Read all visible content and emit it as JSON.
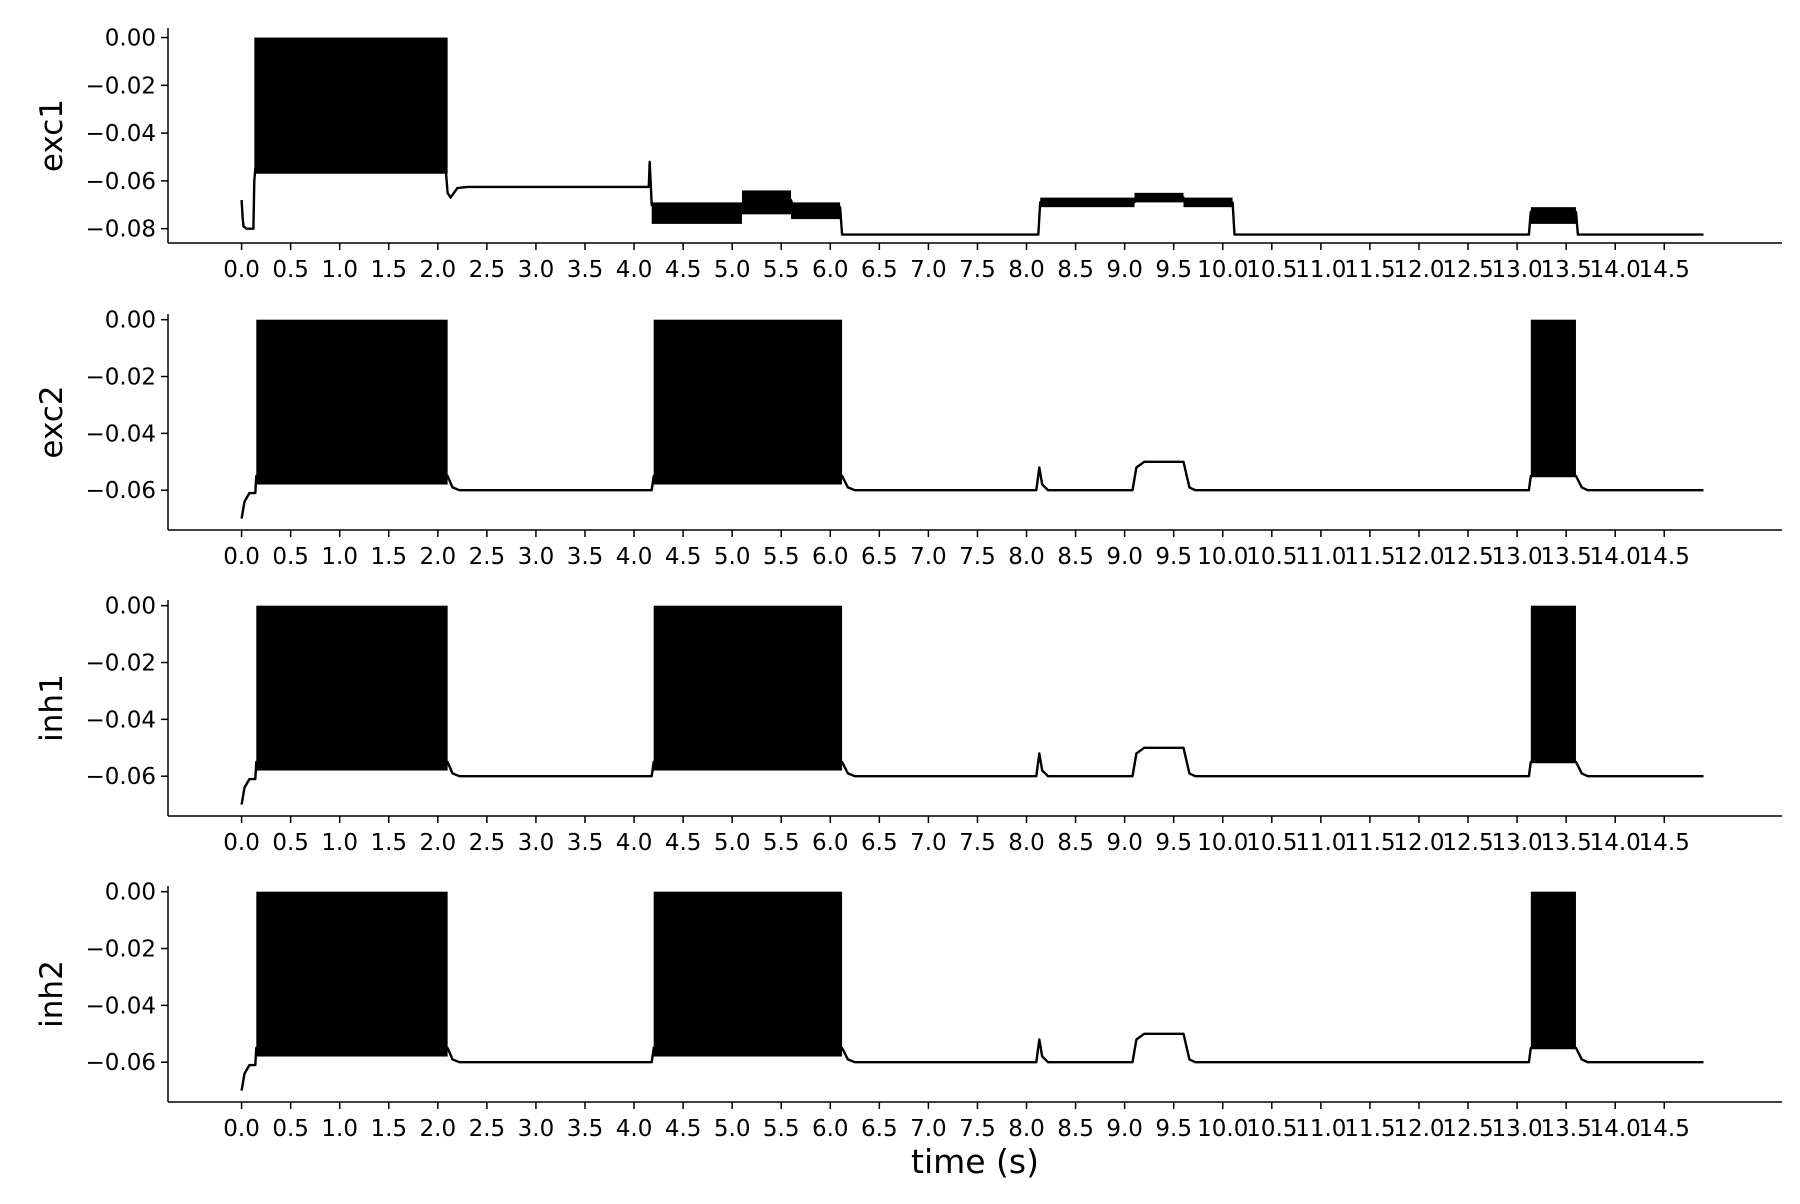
{
  "chart_data": {
    "type": "line",
    "xlabel": "time (s)",
    "xlim": [
      -0.75,
      15.7
    ],
    "xticks": [
      0.0,
      0.5,
      1.0,
      1.5,
      2.0,
      2.5,
      3.0,
      3.5,
      4.0,
      4.5,
      5.0,
      5.5,
      6.0,
      6.5,
      7.0,
      7.5,
      8.0,
      8.5,
      9.0,
      9.5,
      10.0,
      10.5,
      11.0,
      11.5,
      12.0,
      12.5,
      13.0,
      13.5,
      14.0,
      14.5
    ],
    "xtick_labels": [
      "0.0",
      "0.5",
      "1.0",
      "1.5",
      "2.0",
      "2.5",
      "3.0",
      "3.5",
      "4.0",
      "4.5",
      "5.0",
      "5.5",
      "6.0",
      "6.5",
      "7.0",
      "7.5",
      "8.0",
      "8.5",
      "9.0",
      "9.5",
      "10.0",
      "10.5",
      "11.0",
      "11.5",
      "12.0",
      "12.5",
      "13.0",
      "13.5",
      "14.0",
      "14.5"
    ],
    "line_color": "#000000",
    "grid": false,
    "panels": [
      {
        "ylabel": "exc1",
        "ylim": [
          -0.086,
          0.004
        ],
        "yticks": [
          0.0,
          -0.02,
          -0.04,
          -0.06,
          -0.08
        ],
        "ytick_labels": [
          "0.00",
          "−0.02",
          "−0.04",
          "−0.06",
          "−0.08"
        ],
        "trace": [
          [
            0.0,
            -0.068
          ],
          [
            0.01,
            -0.075
          ],
          [
            0.02,
            -0.079
          ],
          [
            0.05,
            -0.08
          ],
          [
            0.12,
            -0.08
          ],
          [
            0.13,
            -0.06
          ],
          [
            0.14,
            -0.055
          ],
          [
            2.08,
            -0.055
          ],
          [
            2.1,
            -0.065
          ],
          [
            2.13,
            -0.067
          ],
          [
            2.2,
            -0.063
          ],
          [
            2.3,
            -0.0625
          ],
          [
            4.15,
            -0.0625
          ],
          [
            4.16,
            -0.052
          ],
          [
            4.18,
            -0.07
          ],
          [
            4.2,
            -0.071
          ],
          [
            5.1,
            -0.071
          ],
          [
            5.12,
            -0.068
          ],
          [
            5.6,
            -0.068
          ],
          [
            5.62,
            -0.071
          ],
          [
            6.1,
            -0.071
          ],
          [
            6.12,
            -0.0825
          ],
          [
            8.12,
            -0.0825
          ],
          [
            8.14,
            -0.069
          ],
          [
            9.1,
            -0.069
          ],
          [
            9.12,
            -0.067
          ],
          [
            9.6,
            -0.067
          ],
          [
            9.62,
            -0.069
          ],
          [
            10.1,
            -0.069
          ],
          [
            10.12,
            -0.0825
          ],
          [
            13.12,
            -0.0825
          ],
          [
            13.14,
            -0.073
          ],
          [
            13.6,
            -0.073
          ],
          [
            13.62,
            -0.0825
          ],
          [
            14.9,
            -0.0825
          ]
        ],
        "bursts": [
          {
            "x0": 0.13,
            "x1": 2.1,
            "y0": -0.057,
            "y1": 0.0
          },
          {
            "x0": 4.18,
            "x1": 5.1,
            "y0": -0.078,
            "y1": -0.069
          },
          {
            "x0": 5.1,
            "x1": 5.6,
            "y0": -0.074,
            "y1": -0.064
          },
          {
            "x0": 5.6,
            "x1": 6.1,
            "y0": -0.076,
            "y1": -0.069
          },
          {
            "x0": 8.14,
            "x1": 9.1,
            "y0": -0.071,
            "y1": -0.067
          },
          {
            "x0": 9.1,
            "x1": 9.6,
            "y0": -0.069,
            "y1": -0.065
          },
          {
            "x0": 9.6,
            "x1": 10.1,
            "y0": -0.071,
            "y1": -0.067
          },
          {
            "x0": 13.14,
            "x1": 13.6,
            "y0": -0.078,
            "y1": -0.071
          }
        ]
      },
      {
        "ylabel": "exc2",
        "ylim": [
          -0.074,
          0.002
        ],
        "yticks": [
          0.0,
          -0.02,
          -0.04,
          -0.06
        ],
        "ytick_labels": [
          "0.00",
          "−0.02",
          "−0.04",
          "−0.06"
        ],
        "trace": [
          [
            0.0,
            -0.07
          ],
          [
            0.03,
            -0.064
          ],
          [
            0.08,
            -0.061
          ],
          [
            0.14,
            -0.061
          ],
          [
            0.15,
            -0.055
          ],
          [
            2.1,
            -0.055
          ],
          [
            2.15,
            -0.059
          ],
          [
            2.22,
            -0.06
          ],
          [
            4.18,
            -0.06
          ],
          [
            4.2,
            -0.055
          ],
          [
            6.12,
            -0.055
          ],
          [
            6.18,
            -0.059
          ],
          [
            6.25,
            -0.06
          ],
          [
            8.1,
            -0.06
          ],
          [
            8.13,
            -0.052
          ],
          [
            8.16,
            -0.058
          ],
          [
            8.22,
            -0.06
          ],
          [
            9.08,
            -0.06
          ],
          [
            9.12,
            -0.052
          ],
          [
            9.2,
            -0.05
          ],
          [
            9.6,
            -0.05
          ],
          [
            9.66,
            -0.059
          ],
          [
            9.72,
            -0.06
          ],
          [
            13.12,
            -0.06
          ],
          [
            13.14,
            -0.055
          ],
          [
            13.6,
            -0.055
          ],
          [
            13.66,
            -0.059
          ],
          [
            13.72,
            -0.06
          ],
          [
            14.9,
            -0.06
          ]
        ],
        "bursts": [
          {
            "x0": 0.15,
            "x1": 2.1,
            "y0": -0.058,
            "y1": 0.0
          },
          {
            "x0": 4.2,
            "x1": 6.12,
            "y0": -0.058,
            "y1": 0.0
          },
          {
            "x0": 13.14,
            "x1": 13.6,
            "y0": -0.055,
            "y1": 0.0
          }
        ]
      },
      {
        "ylabel": "inh1",
        "ylim": [
          -0.074,
          0.002
        ],
        "yticks": [
          0.0,
          -0.02,
          -0.04,
          -0.06
        ],
        "ytick_labels": [
          "0.00",
          "−0.02",
          "−0.04",
          "−0.06"
        ],
        "trace": [
          [
            0.0,
            -0.07
          ],
          [
            0.03,
            -0.064
          ],
          [
            0.08,
            -0.061
          ],
          [
            0.14,
            -0.061
          ],
          [
            0.15,
            -0.055
          ],
          [
            2.1,
            -0.055
          ],
          [
            2.15,
            -0.059
          ],
          [
            2.22,
            -0.06
          ],
          [
            4.18,
            -0.06
          ],
          [
            4.2,
            -0.055
          ],
          [
            6.12,
            -0.055
          ],
          [
            6.18,
            -0.059
          ],
          [
            6.25,
            -0.06
          ],
          [
            8.1,
            -0.06
          ],
          [
            8.13,
            -0.052
          ],
          [
            8.16,
            -0.058
          ],
          [
            8.22,
            -0.06
          ],
          [
            9.08,
            -0.06
          ],
          [
            9.12,
            -0.052
          ],
          [
            9.2,
            -0.05
          ],
          [
            9.6,
            -0.05
          ],
          [
            9.66,
            -0.059
          ],
          [
            9.72,
            -0.06
          ],
          [
            13.12,
            -0.06
          ],
          [
            13.14,
            -0.055
          ],
          [
            13.6,
            -0.055
          ],
          [
            13.66,
            -0.059
          ],
          [
            13.72,
            -0.06
          ],
          [
            14.9,
            -0.06
          ]
        ],
        "bursts": [
          {
            "x0": 0.15,
            "x1": 2.1,
            "y0": -0.058,
            "y1": 0.0
          },
          {
            "x0": 4.2,
            "x1": 6.12,
            "y0": -0.058,
            "y1": 0.0
          },
          {
            "x0": 13.14,
            "x1": 13.6,
            "y0": -0.055,
            "y1": 0.0
          }
        ]
      },
      {
        "ylabel": "inh2",
        "ylim": [
          -0.074,
          0.002
        ],
        "yticks": [
          0.0,
          -0.02,
          -0.04,
          -0.06
        ],
        "ytick_labels": [
          "0.00",
          "−0.02",
          "−0.04",
          "−0.06"
        ],
        "trace": [
          [
            0.0,
            -0.07
          ],
          [
            0.03,
            -0.064
          ],
          [
            0.08,
            -0.061
          ],
          [
            0.14,
            -0.061
          ],
          [
            0.15,
            -0.055
          ],
          [
            2.1,
            -0.055
          ],
          [
            2.15,
            -0.059
          ],
          [
            2.22,
            -0.06
          ],
          [
            4.18,
            -0.06
          ],
          [
            4.2,
            -0.055
          ],
          [
            6.12,
            -0.055
          ],
          [
            6.18,
            -0.059
          ],
          [
            6.25,
            -0.06
          ],
          [
            8.1,
            -0.06
          ],
          [
            8.13,
            -0.052
          ],
          [
            8.16,
            -0.058
          ],
          [
            8.22,
            -0.06
          ],
          [
            9.08,
            -0.06
          ],
          [
            9.12,
            -0.052
          ],
          [
            9.2,
            -0.05
          ],
          [
            9.6,
            -0.05
          ],
          [
            9.66,
            -0.059
          ],
          [
            9.72,
            -0.06
          ],
          [
            13.12,
            -0.06
          ],
          [
            13.14,
            -0.055
          ],
          [
            13.6,
            -0.055
          ],
          [
            13.66,
            -0.059
          ],
          [
            13.72,
            -0.06
          ],
          [
            14.9,
            -0.06
          ]
        ],
        "bursts": [
          {
            "x0": 0.15,
            "x1": 2.1,
            "y0": -0.058,
            "y1": 0.0
          },
          {
            "x0": 4.2,
            "x1": 6.12,
            "y0": -0.058,
            "y1": 0.0
          },
          {
            "x0": 13.14,
            "x1": 13.6,
            "y0": -0.055,
            "y1": 0.0
          }
        ]
      }
    ]
  }
}
